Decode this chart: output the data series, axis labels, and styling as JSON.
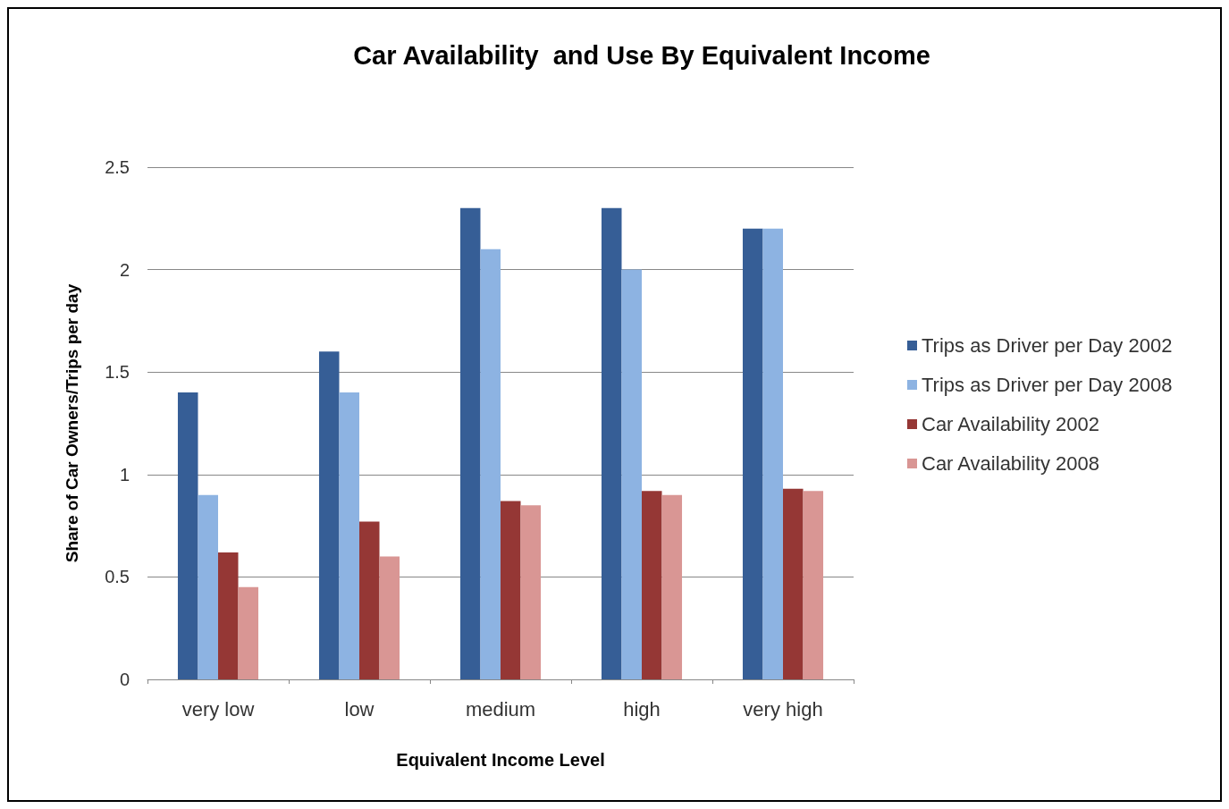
{
  "chart_data": {
    "type": "bar",
    "title": "Car Availability  and Use By Equivalent Income",
    "xlabel": "Equivalent Income Level",
    "ylabel": "Share of Car Owners/Trips per day",
    "categories": [
      "very low",
      "low",
      "medium",
      "high",
      "very high"
    ],
    "series": [
      {
        "name": "Trips as Driver per Day 2002",
        "color": "#365e96",
        "values": [
          1.4,
          1.6,
          2.3,
          2.3,
          2.2
        ]
      },
      {
        "name": "Trips as Driver per Day 2008",
        "color": "#8db3e2",
        "values": [
          0.9,
          1.4,
          2.1,
          2.0,
          2.2
        ]
      },
      {
        "name": "Car Availability 2002",
        "color": "#953735",
        "values": [
          0.62,
          0.77,
          0.87,
          0.92,
          0.93
        ]
      },
      {
        "name": "Car Availability 2008",
        "color": "#d99694",
        "values": [
          0.45,
          0.6,
          0.85,
          0.9,
          0.92
        ]
      }
    ],
    "ylim": [
      0,
      2.5
    ],
    "yticks": [
      0,
      0.5,
      1,
      1.5,
      2,
      2.5
    ],
    "grid": "y",
    "legend": "right"
  }
}
